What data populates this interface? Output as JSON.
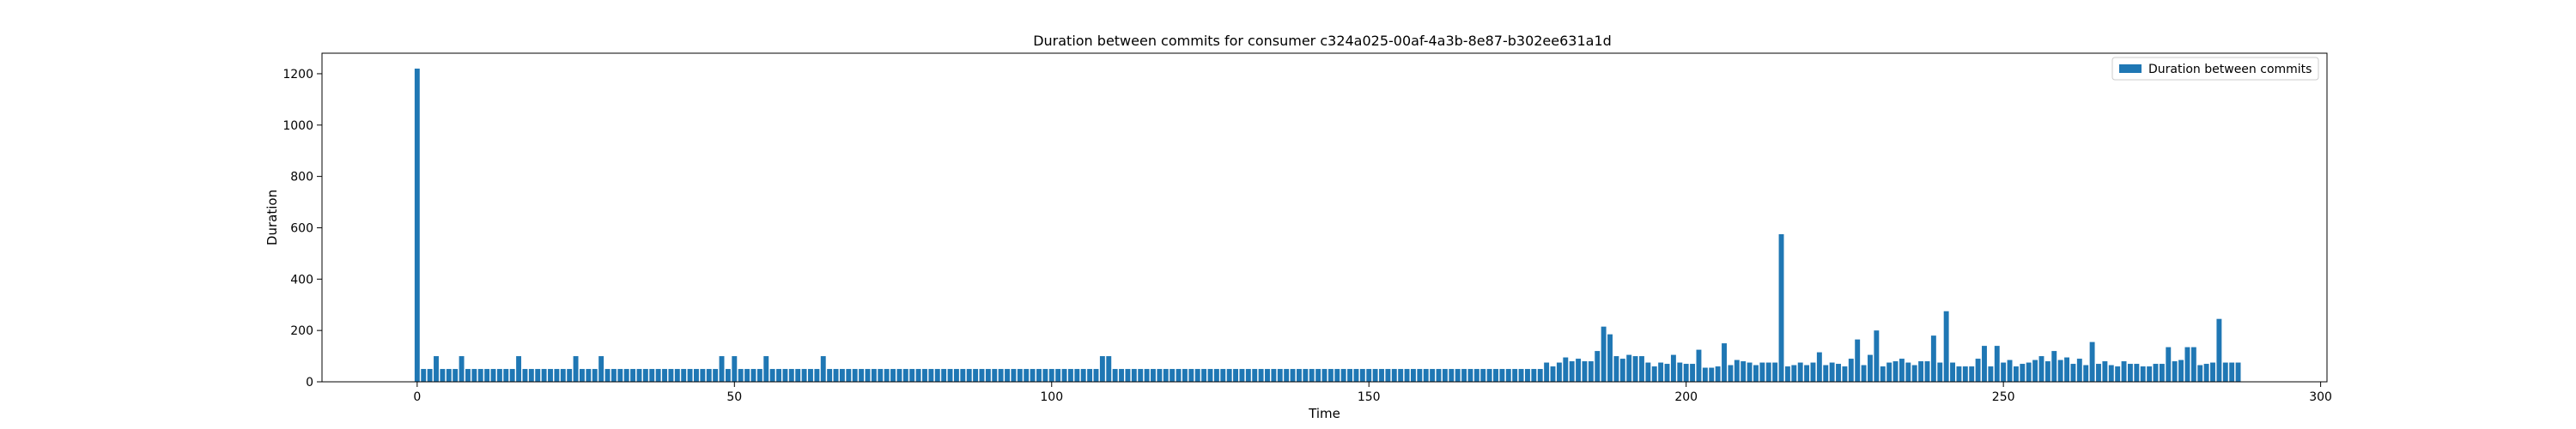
{
  "chart_data": {
    "type": "bar",
    "title": "Duration between commits for consumer c324a025-00af-4a3b-8e87-b302ee631a1d",
    "xlabel": "Time",
    "ylabel": "Duration",
    "xlim": [
      -15,
      301
    ],
    "ylim": [
      0,
      1280
    ],
    "x_ticks": [
      0,
      50,
      100,
      150,
      200,
      250,
      300
    ],
    "y_ticks": [
      0,
      200,
      400,
      600,
      800,
      1000,
      1200
    ],
    "grid": false,
    "legend_position": "upper right",
    "series": [
      {
        "name": "Duration between commits",
        "color": "#1f77b4",
        "values": [
          1220,
          50,
          50,
          100,
          50,
          50,
          50,
          100,
          50,
          50,
          50,
          50,
          50,
          50,
          50,
          50,
          100,
          50,
          50,
          50,
          50,
          50,
          50,
          50,
          50,
          100,
          50,
          50,
          50,
          100,
          50,
          50,
          50,
          50,
          50,
          50,
          50,
          50,
          50,
          50,
          50,
          50,
          50,
          50,
          50,
          50,
          50,
          50,
          100,
          50,
          100,
          50,
          50,
          50,
          50,
          100,
          50,
          50,
          50,
          50,
          50,
          50,
          50,
          50,
          100,
          50,
          50,
          50,
          50,
          50,
          50,
          50,
          50,
          50,
          50,
          50,
          50,
          50,
          50,
          50,
          50,
          50,
          50,
          50,
          50,
          50,
          50,
          50,
          50,
          50,
          50,
          50,
          50,
          50,
          50,
          50,
          50,
          50,
          50,
          50,
          50,
          50,
          50,
          50,
          50,
          50,
          50,
          50,
          100,
          100,
          50,
          50,
          50,
          50,
          50,
          50,
          50,
          50,
          50,
          50,
          50,
          50,
          50,
          50,
          50,
          50,
          50,
          50,
          50,
          50,
          50,
          50,
          50,
          50,
          50,
          50,
          50,
          50,
          50,
          50,
          50,
          50,
          50,
          50,
          50,
          50,
          50,
          50,
          50,
          50,
          50,
          50,
          50,
          50,
          50,
          50,
          50,
          50,
          50,
          50,
          50,
          50,
          50,
          50,
          50,
          50,
          50,
          50,
          50,
          50,
          50,
          50,
          50,
          50,
          50,
          50,
          50,
          50,
          75,
          60,
          75,
          95,
          80,
          90,
          80,
          80,
          120,
          215,
          185,
          100,
          90,
          105,
          100,
          100,
          75,
          60,
          75,
          70,
          105,
          75,
          70,
          70,
          125,
          55,
          55,
          60,
          150,
          65,
          85,
          80,
          75,
          65,
          75,
          75,
          75,
          575,
          60,
          65,
          75,
          65,
          75,
          115,
          65,
          75,
          70,
          60,
          90,
          165,
          65,
          105,
          200,
          60,
          75,
          80,
          90,
          75,
          65,
          80,
          80,
          180,
          75,
          275,
          75,
          60,
          60,
          60,
          90,
          140,
          60,
          140,
          75,
          85,
          60,
          70,
          75,
          85,
          100,
          80,
          120,
          85,
          95,
          70,
          90,
          65,
          155,
          70,
          80,
          65,
          60,
          80,
          70,
          70,
          60,
          60,
          70,
          70,
          135,
          80,
          85,
          135,
          135,
          65,
          70,
          75,
          245,
          75,
          75,
          75
        ]
      }
    ]
  }
}
